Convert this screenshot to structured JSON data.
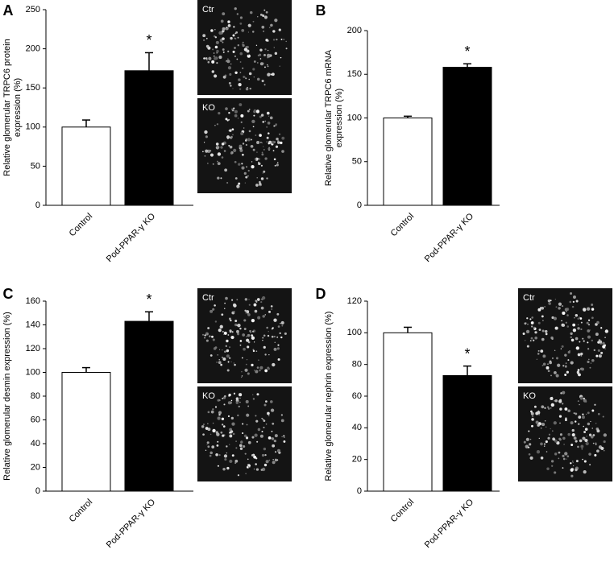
{
  "chart_data": [
    {
      "type": "bar",
      "panel": "A",
      "ylabel": [
        "Relative glomerular TRPC6 protein",
        "expression (%)"
      ],
      "categories": [
        "Control",
        "Pod-PPAR-γ KO"
      ],
      "values": [
        100,
        172
      ],
      "errors": [
        9,
        23
      ],
      "colors": [
        "#ffffff",
        "#000000"
      ],
      "annotation": "*",
      "ylim": [
        0,
        250
      ],
      "yticks": [
        0,
        50,
        100,
        150,
        200,
        250
      ],
      "images": [
        "Ctr",
        "KO"
      ]
    },
    {
      "type": "bar",
      "panel": "B",
      "ylabel": [
        "Relative glomerular TRPC6 mRNA",
        "expression (%)"
      ],
      "categories": [
        "Control",
        "Pod-PPAR-γ KO"
      ],
      "values": [
        100,
        158
      ],
      "errors": [
        2,
        4
      ],
      "colors": [
        "#ffffff",
        "#000000"
      ],
      "annotation": "*",
      "ylim": [
        0,
        200
      ],
      "yticks": [
        0,
        50,
        100,
        150,
        200
      ]
    },
    {
      "type": "bar",
      "panel": "C",
      "ylabel": [
        "Relative glomerular desmin expression (%)"
      ],
      "categories": [
        "Control",
        "Pod-PPAR-γ KO"
      ],
      "values": [
        100,
        143
      ],
      "errors": [
        4,
        8
      ],
      "colors": [
        "#ffffff",
        "#000000"
      ],
      "annotation": "*",
      "ylim": [
        0,
        160
      ],
      "yticks": [
        0,
        20,
        40,
        60,
        80,
        100,
        120,
        140,
        160
      ],
      "images": [
        "Ctr",
        "KO"
      ]
    },
    {
      "type": "bar",
      "panel": "D",
      "ylabel": [
        "Relative glomerular nephrin expression (%)"
      ],
      "categories": [
        "Control",
        "Pod-PPAR-γ KO"
      ],
      "values": [
        100,
        73
      ],
      "errors": [
        3.5,
        6
      ],
      "colors": [
        "#ffffff",
        "#000000"
      ],
      "annotation": "*",
      "ylim": [
        0,
        120
      ],
      "yticks": [
        0,
        20,
        40,
        60,
        80,
        100,
        120
      ],
      "images": [
        "Ctr",
        "KO"
      ]
    }
  ]
}
